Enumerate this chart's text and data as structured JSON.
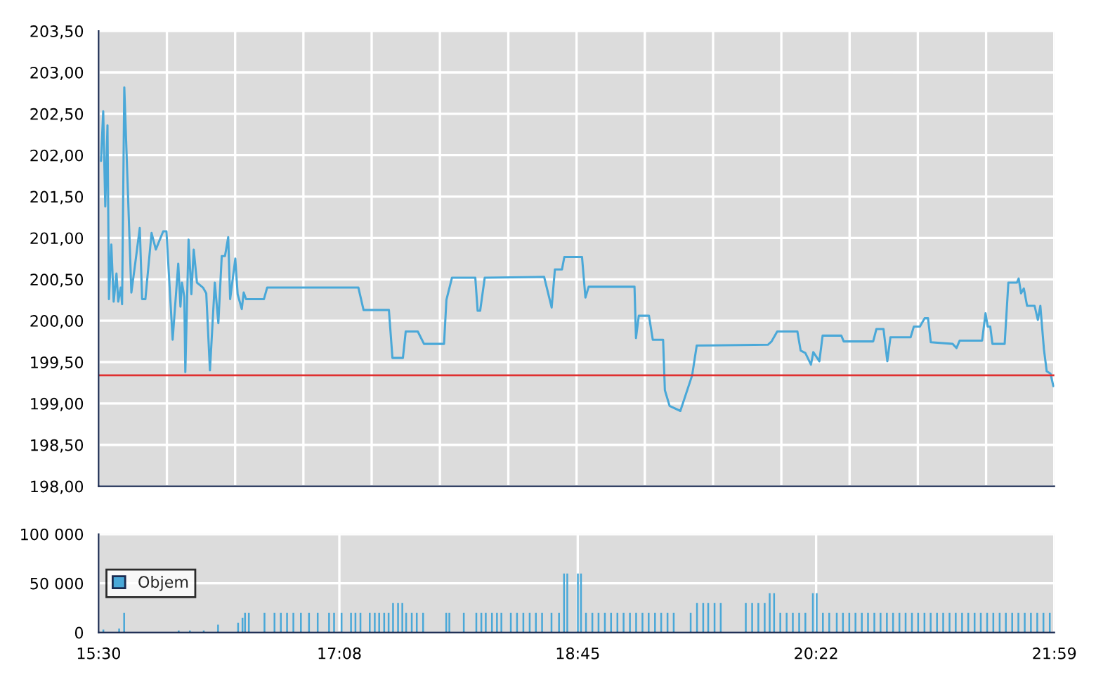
{
  "chart_data": [
    {
      "type": "line",
      "xlim": [
        15.5,
        21.983
      ],
      "ylim": [
        198,
        203.5
      ],
      "xticks": [
        {
          "value": 15.5,
          "label": null
        },
        {
          "value": 15.963,
          "label": null
        },
        {
          "value": 16.426,
          "label": null
        },
        {
          "value": 16.889,
          "label": null
        },
        {
          "value": 17.352,
          "label": null
        },
        {
          "value": 17.815,
          "label": null
        },
        {
          "value": 18.279,
          "label": null
        },
        {
          "value": 18.742,
          "label": null
        },
        {
          "value": 19.205,
          "label": null
        },
        {
          "value": 19.668,
          "label": null
        },
        {
          "value": 20.131,
          "label": null
        },
        {
          "value": 20.594,
          "label": null
        },
        {
          "value": 21.057,
          "label": null
        },
        {
          "value": 21.52,
          "label": null
        },
        {
          "value": 21.983,
          "label": null
        }
      ],
      "yticks": [
        {
          "value": 198,
          "label": "198,00"
        },
        {
          "value": 198.5,
          "label": "198,50"
        },
        {
          "value": 199,
          "label": "199,00"
        },
        {
          "value": 199.5,
          "label": "199,50"
        },
        {
          "value": 200,
          "label": "200,00"
        },
        {
          "value": 200.5,
          "label": "200,50"
        },
        {
          "value": 201,
          "label": "201,00"
        },
        {
          "value": 201.5,
          "label": "201,50"
        },
        {
          "value": 202,
          "label": "202,00"
        },
        {
          "value": 202.5,
          "label": "202,50"
        },
        {
          "value": 203,
          "label": "203,00"
        },
        {
          "value": 203.5,
          "label": "203,50"
        }
      ],
      "tick_labels": "y",
      "grid": true,
      "legend": false,
      "ref_lines": [
        {
          "axis": "y",
          "value": 199.34,
          "color": "#e03030"
        }
      ],
      "series": [
        {
          "color": "#4aa8d8",
          "x": [
            15.516,
            15.531,
            15.545,
            15.56,
            15.57,
            15.586,
            15.602,
            15.621,
            15.633,
            15.65,
            15.659,
            15.674,
            15.722,
            15.748,
            15.779,
            15.795,
            15.817,
            15.859,
            15.888,
            15.938,
            15.96,
            16.002,
            16.04,
            16.055,
            16.065,
            16.081,
            16.088,
            16.11,
            16.129,
            16.145,
            16.167,
            16.208,
            16.23,
            16.255,
            16.288,
            16.312,
            16.335,
            16.357,
            16.379,
            16.392,
            16.427,
            16.443,
            16.471,
            16.484,
            16.5,
            16.621,
            16.643,
            17.262,
            17.297,
            17.469,
            17.493,
            17.564,
            17.583,
            17.665,
            17.707,
            17.843,
            17.859,
            17.897,
            18.055,
            18.071,
            18.088,
            18.119,
            18.522,
            18.573,
            18.595,
            18.643,
            18.659,
            18.779,
            18.802,
            18.824,
            19.135,
            19.145,
            19.164,
            19.233,
            19.259,
            19.329,
            19.341,
            19.373,
            19.446,
            19.526,
            19.557,
            20.04,
            20.065,
            20.103,
            20.24,
            20.262,
            20.294,
            20.332,
            20.348,
            20.389,
            20.411,
            20.538,
            20.554,
            20.754,
            20.776,
            20.824,
            20.85,
            20.871,
            21.008,
            21.03,
            21.071,
            21.103,
            21.126,
            21.145,
            21.293,
            21.319,
            21.341,
            21.493,
            21.516,
            21.531,
            21.548,
            21.563,
            21.646,
            21.671,
            21.729,
            21.741,
            21.757,
            21.776,
            21.798,
            21.849,
            21.871,
            21.888,
            21.912,
            21.931,
            21.957,
            21.976
          ],
          "values": [
            201.93,
            202.53,
            201.38,
            202.36,
            200.26,
            200.92,
            200.23,
            200.57,
            200.23,
            200.4,
            200.2,
            202.82,
            200.34,
            200.69,
            201.12,
            200.26,
            200.26,
            201.06,
            200.86,
            201.08,
            201.08,
            199.77,
            200.69,
            200.17,
            200.46,
            200.29,
            199.38,
            200.98,
            200.32,
            200.86,
            200.46,
            200.4,
            200.33,
            199.4,
            200.46,
            199.97,
            200.78,
            200.78,
            201.01,
            200.26,
            200.75,
            200.32,
            200.14,
            200.34,
            200.26,
            200.26,
            200.4,
            200.4,
            200.13,
            200.13,
            199.55,
            199.55,
            199.87,
            199.87,
            199.72,
            199.72,
            200.25,
            200.52,
            200.52,
            200.12,
            200.12,
            200.52,
            200.53,
            200.16,
            200.62,
            200.62,
            200.77,
            200.77,
            200.28,
            200.41,
            200.41,
            199.79,
            200.06,
            200.06,
            199.77,
            199.77,
            199.16,
            198.97,
            198.91,
            199.34,
            199.7,
            199.71,
            199.75,
            199.87,
            199.87,
            199.64,
            199.61,
            199.47,
            199.62,
            199.51,
            199.82,
            199.82,
            199.75,
            199.75,
            199.9,
            199.9,
            199.51,
            199.8,
            199.8,
            199.93,
            199.93,
            200.03,
            200.03,
            199.74,
            199.72,
            199.67,
            199.76,
            199.76,
            200.09,
            199.93,
            199.93,
            199.72,
            199.72,
            200.46,
            200.46,
            200.51,
            200.33,
            200.39,
            200.18,
            200.18,
            200.01,
            200.18,
            199.66,
            199.39,
            199.36,
            199.21
          ]
        }
      ]
    },
    {
      "type": "bar",
      "xlim": [
        15.5,
        21.983
      ],
      "ylim": [
        0,
        100000
      ],
      "xticks": [
        {
          "value": 15.5,
          "label": "15:30"
        },
        {
          "value": 17.133,
          "label": "17:08"
        },
        {
          "value": 18.75,
          "label": "18:45"
        },
        {
          "value": 20.367,
          "label": "20:22"
        },
        {
          "value": 21.983,
          "label": "21:59"
        }
      ],
      "yticks": [
        {
          "value": 0,
          "label": "0"
        },
        {
          "value": 50000,
          "label": "50 000"
        },
        {
          "value": 100000,
          "label": "100 000"
        }
      ],
      "grid": true,
      "legend": "left",
      "series": [
        {
          "name": "Objem",
          "color": "#4aa8d8",
          "x": [
            15.532,
            15.639,
            15.673,
            16.043,
            16.119,
            16.213,
            16.31,
            16.446,
            16.476,
            16.493,
            16.519,
            16.625,
            16.693,
            16.736,
            16.778,
            16.821,
            16.872,
            16.927,
            16.986,
            17.063,
            17.097,
            17.148,
            17.212,
            17.242,
            17.276,
            17.339,
            17.373,
            17.403,
            17.437,
            17.467,
            17.497,
            17.531,
            17.56,
            17.586,
            17.624,
            17.658,
            17.701,
            17.858,
            17.879,
            17.977,
            18.062,
            18.096,
            18.126,
            18.168,
            18.202,
            18.232,
            18.296,
            18.338,
            18.381,
            18.424,
            18.466,
            18.508,
            18.572,
            18.623,
            18.657,
            18.679,
            18.751,
            18.772,
            18.806,
            18.849,
            18.891,
            18.934,
            18.976,
            19.019,
            19.061,
            19.104,
            19.146,
            19.189,
            19.231,
            19.274,
            19.316,
            19.359,
            19.401,
            19.516,
            19.559,
            19.601,
            19.635,
            19.678,
            19.72,
            19.89,
            19.933,
            19.975,
            20.018,
            20.052,
            20.082,
            20.124,
            20.167,
            20.209,
            20.252,
            20.294,
            20.345,
            20.371,
            20.413,
            20.456,
            20.507,
            20.549,
            20.592,
            20.634,
            20.677,
            20.719,
            20.762,
            20.804,
            20.847,
            20.889,
            20.932,
            20.974,
            21.017,
            21.059,
            21.102,
            21.144,
            21.187,
            21.229,
            21.272,
            21.314,
            21.357,
            21.399,
            21.442,
            21.484,
            21.527,
            21.569,
            21.612,
            21.654,
            21.697,
            21.739,
            21.782,
            21.824,
            21.867,
            21.909,
            21.952
          ],
          "values": [
            3000,
            4000,
            20000,
            2000,
            2000,
            2000,
            8000,
            10000,
            15000,
            20000,
            20000,
            20000,
            20000,
            20000,
            20000,
            20000,
            20000,
            20000,
            20000,
            20000,
            20000,
            20000,
            20000,
            20000,
            20000,
            20000,
            20000,
            20000,
            20000,
            20000,
            30000,
            30000,
            30000,
            20000,
            20000,
            20000,
            20000,
            20000,
            20000,
            20000,
            20000,
            20000,
            20000,
            20000,
            20000,
            20000,
            20000,
            20000,
            20000,
            20000,
            20000,
            20000,
            20000,
            20000,
            60000,
            60000,
            60000,
            60000,
            20000,
            20000,
            20000,
            20000,
            20000,
            20000,
            20000,
            20000,
            20000,
            20000,
            20000,
            20000,
            20000,
            20000,
            20000,
            20000,
            30000,
            30000,
            30000,
            30000,
            30000,
            30000,
            30000,
            30000,
            30000,
            40000,
            40000,
            20000,
            20000,
            20000,
            20000,
            20000,
            40000,
            40000,
            20000,
            20000,
            20000,
            20000,
            20000,
            20000,
            20000,
            20000,
            20000,
            20000,
            20000,
            20000,
            20000,
            20000,
            20000,
            20000,
            20000,
            20000,
            20000,
            20000,
            20000,
            20000,
            20000,
            20000,
            20000,
            20000,
            20000,
            20000,
            20000,
            20000,
            20000,
            20000,
            20000,
            20000,
            20000,
            20000,
            20000
          ]
        }
      ]
    }
  ]
}
